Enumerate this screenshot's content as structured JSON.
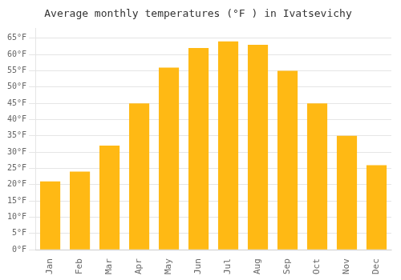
{
  "chart_data": {
    "type": "bar",
    "title": "Average monthly temperatures (°F ) in Ivatsevichy",
    "categories": [
      "Jan",
      "Feb",
      "Mar",
      "Apr",
      "May",
      "Jun",
      "Jul",
      "Aug",
      "Sep",
      "Oct",
      "Nov",
      "Dec"
    ],
    "values": [
      21,
      24,
      32,
      45,
      56,
      62,
      64,
      63,
      55,
      45,
      35,
      26
    ],
    "color": "#FFB914",
    "ylim": [
      0,
      68
    ],
    "yticks": [
      {
        "value": 0,
        "label": "0°F"
      },
      {
        "value": 5,
        "label": "5°F"
      },
      {
        "value": 10,
        "label": "10°F"
      },
      {
        "value": 15,
        "label": "15°F"
      },
      {
        "value": 20,
        "label": "20°F"
      },
      {
        "value": 25,
        "label": "25°F"
      },
      {
        "value": 30,
        "label": "30°F"
      },
      {
        "value": 35,
        "label": "35°F"
      },
      {
        "value": 40,
        "label": "40°F"
      },
      {
        "value": 45,
        "label": "45°F"
      },
      {
        "value": 50,
        "label": "50°F"
      },
      {
        "value": 55,
        "label": "55°F"
      },
      {
        "value": 60,
        "label": "60°F"
      },
      {
        "value": 65,
        "label": "65°F"
      }
    ],
    "grid": true
  }
}
